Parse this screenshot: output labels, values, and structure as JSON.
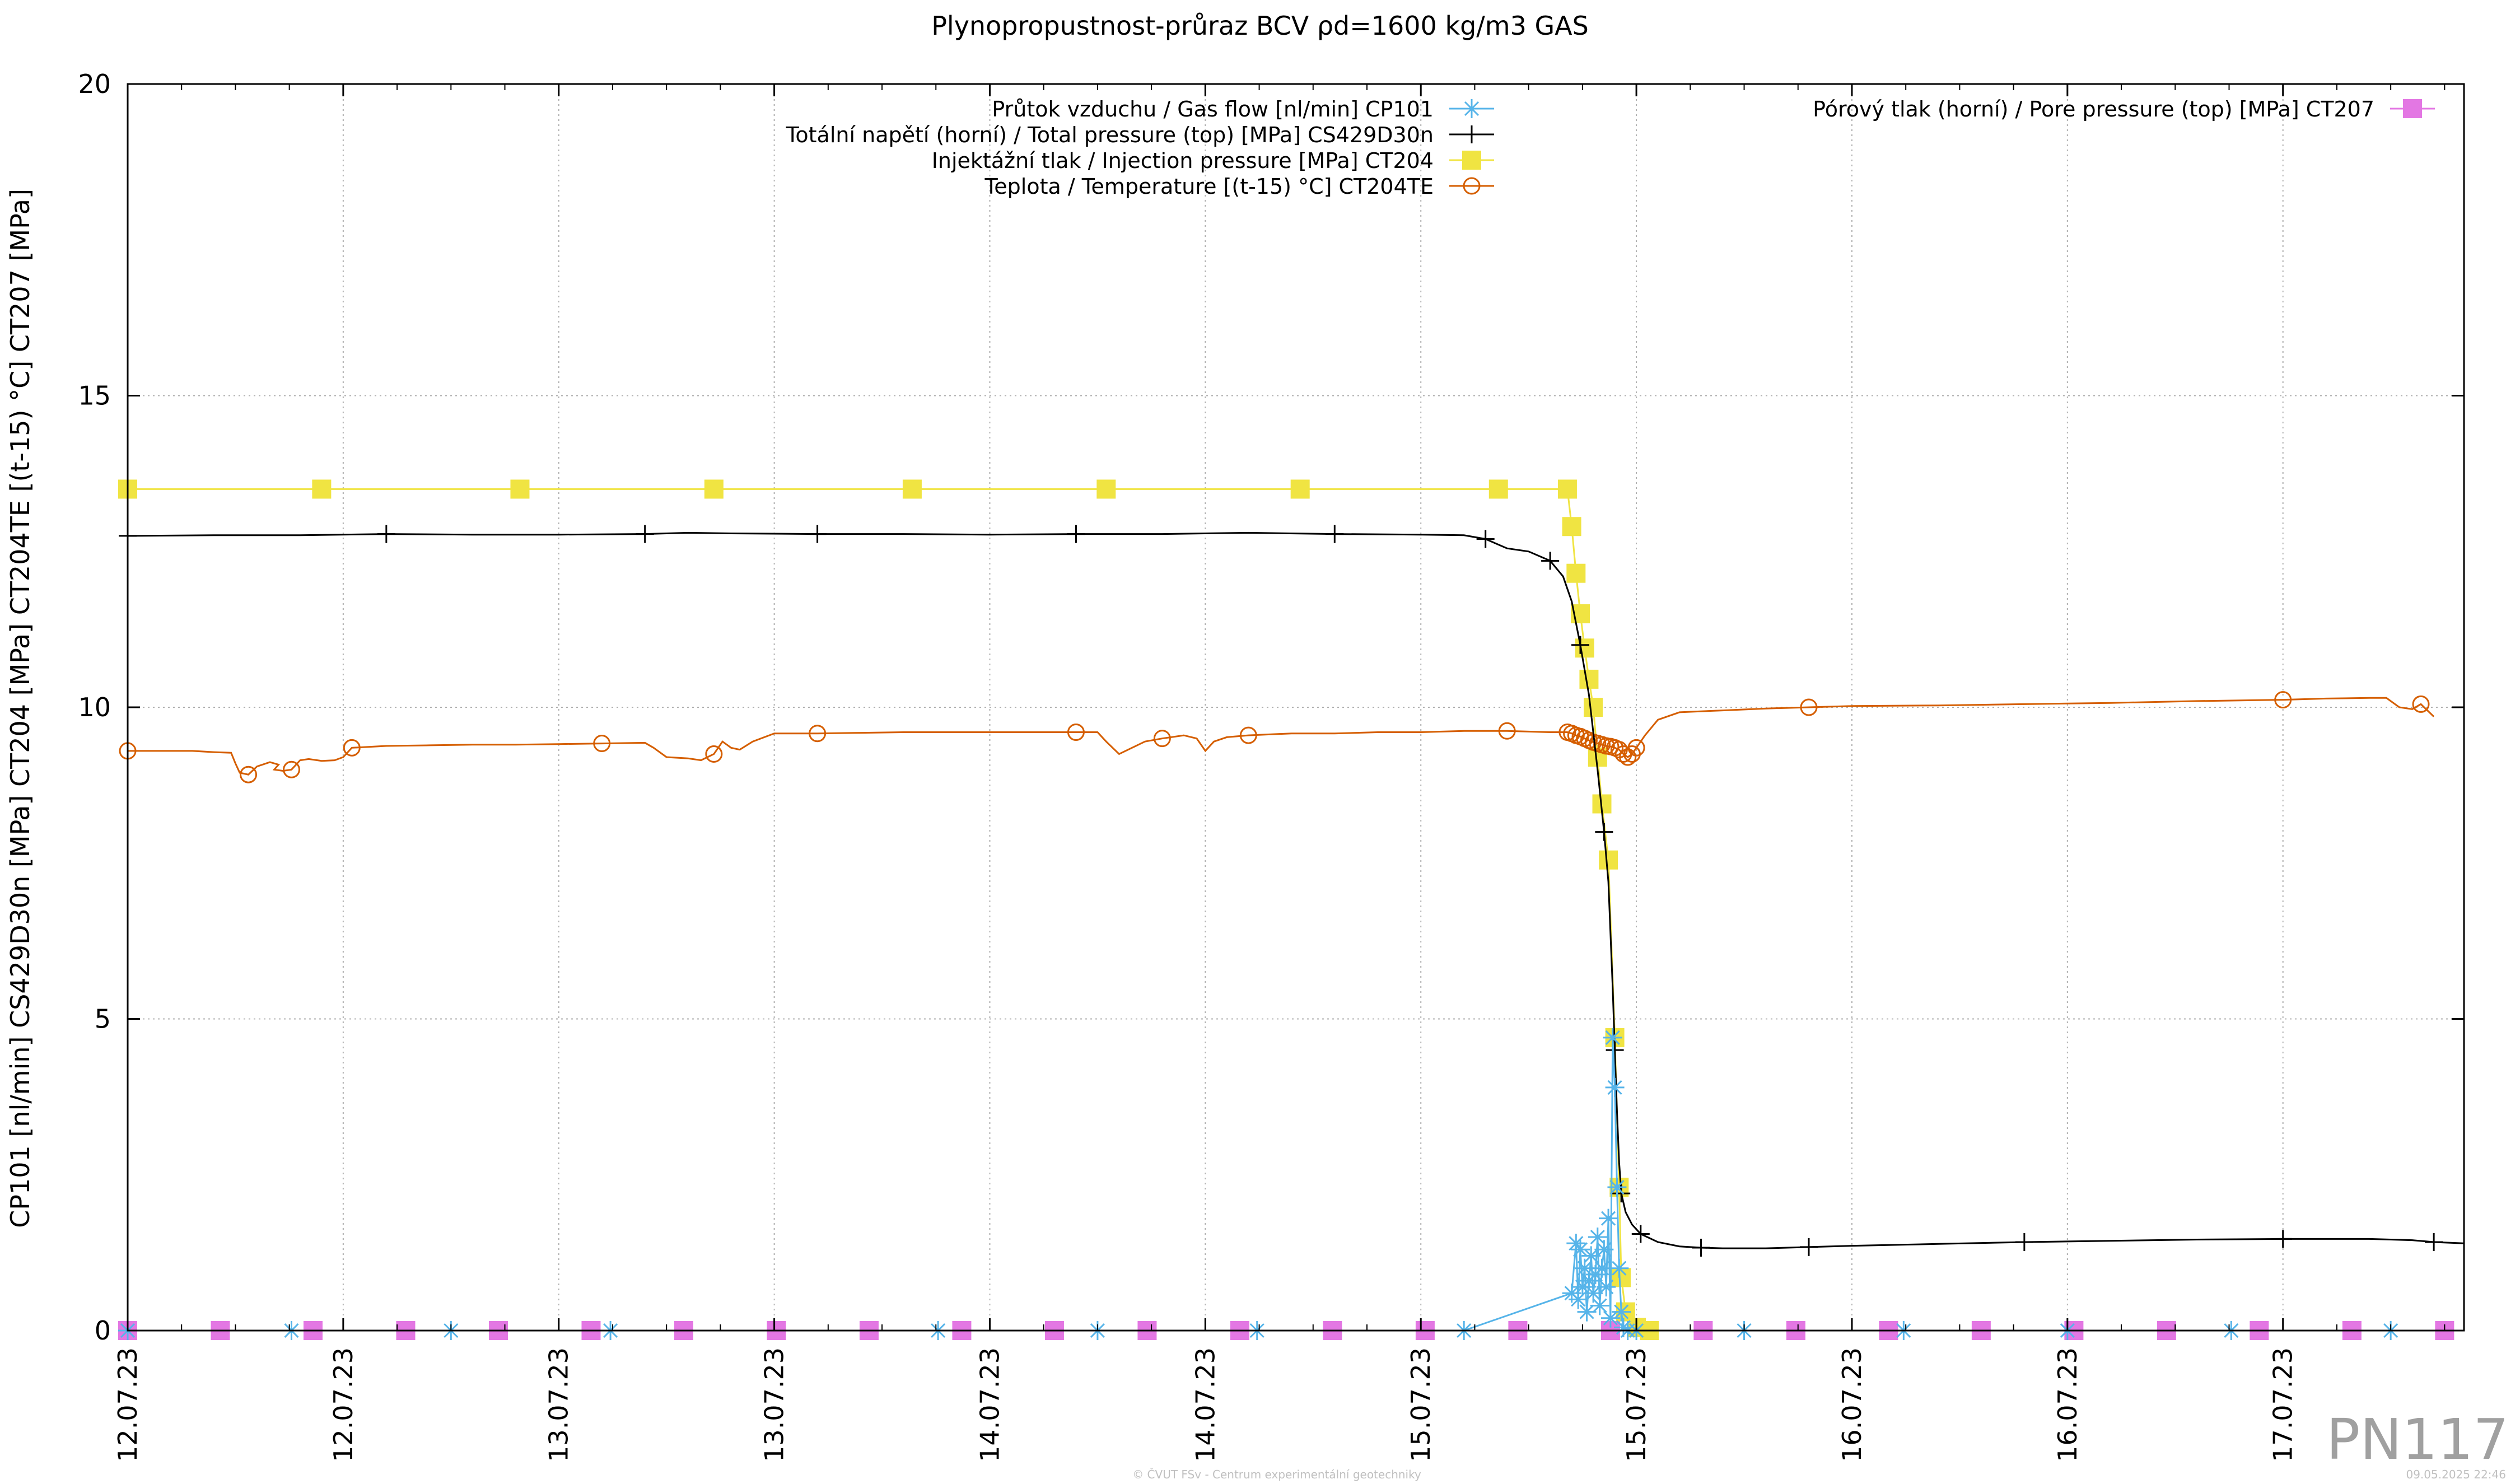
{
  "chart_data": {
    "type": "line",
    "title": "Plynopropustnost-průraz BCV ρd=1600 kg/m3 GAS",
    "ylabel": "CP101 [nl/min] CS429D30n [MPa] CT204 [MPa] CT204TE [(t-15) °C] CT207 [MPa]",
    "xlabel": "",
    "ylim": [
      0,
      20
    ],
    "xlim": [
      0,
      5.42
    ],
    "x_unit": "days from 12.07.23 00:00",
    "y_ticks": [
      0,
      5,
      10,
      15,
      20
    ],
    "y_tick_labels": [
      "0",
      "5",
      "10",
      "15",
      "20"
    ],
    "x_tick_positions": [
      0,
      0.5,
      1,
      1.5,
      2,
      2.5,
      3,
      3.5,
      4,
      4.5,
      5
    ],
    "x_tick_labels": [
      "12.07.23",
      "12.07.23",
      "13.07.23",
      "13.07.23",
      "14.07.23",
      "14.07.23",
      "15.07.23",
      "15.07.23",
      "16.07.23",
      "16.07.23",
      "17.07.23"
    ],
    "grid": true,
    "legend_placement": "top-center and top-right",
    "series": [
      {
        "name": "Průtok vzduchu / Gas flow [nl/min] CP101",
        "color": "#56b4e9",
        "marker": "asterisk",
        "points": [
          [
            0,
            0
          ],
          [
            0.38,
            0
          ],
          [
            0.75,
            0
          ],
          [
            1.12,
            0
          ],
          [
            1.88,
            0
          ],
          [
            2.25,
            0
          ],
          [
            2.62,
            0
          ],
          [
            3.1,
            0
          ],
          [
            3.35,
            0.6
          ],
          [
            3.36,
            1.4
          ],
          [
            3.365,
            0.5
          ],
          [
            3.37,
            1.3
          ],
          [
            3.375,
            0.7
          ],
          [
            3.38,
            1.0
          ],
          [
            3.385,
            0.3
          ],
          [
            3.39,
            0.8
          ],
          [
            3.395,
            1.2
          ],
          [
            3.4,
            0.6
          ],
          [
            3.405,
            0.9
          ],
          [
            3.41,
            1.5
          ],
          [
            3.415,
            0.4
          ],
          [
            3.42,
            1.0
          ],
          [
            3.425,
            1.3
          ],
          [
            3.43,
            0.7
          ],
          [
            3.435,
            1.8
          ],
          [
            3.44,
            0.2
          ],
          [
            3.445,
            4.7
          ],
          [
            3.45,
            3.9
          ],
          [
            3.455,
            2.3
          ],
          [
            3.46,
            1.0
          ],
          [
            3.465,
            0.3
          ],
          [
            3.47,
            0.05
          ],
          [
            3.48,
            0
          ],
          [
            3.5,
            0
          ],
          [
            3.75,
            0
          ],
          [
            4.12,
            0
          ],
          [
            4.5,
            0
          ],
          [
            4.88,
            0
          ],
          [
            5.25,
            0
          ]
        ]
      },
      {
        "name": "Totální napětí (horní) / Total pressure (top) [MPa] CS429D30n",
        "color": "#000000",
        "marker": "plus",
        "points": [
          [
            0,
            12.75
          ],
          [
            0.2,
            12.76
          ],
          [
            0.4,
            12.76
          ],
          [
            0.6,
            12.78
          ],
          [
            0.8,
            12.77
          ],
          [
            1.0,
            12.77
          ],
          [
            1.2,
            12.78
          ],
          [
            1.3,
            12.8
          ],
          [
            1.4,
            12.79
          ],
          [
            1.6,
            12.78
          ],
          [
            1.8,
            12.78
          ],
          [
            2.0,
            12.77
          ],
          [
            2.2,
            12.78
          ],
          [
            2.4,
            12.78
          ],
          [
            2.6,
            12.8
          ],
          [
            2.8,
            12.78
          ],
          [
            3.0,
            12.77
          ],
          [
            3.1,
            12.76
          ],
          [
            3.15,
            12.7
          ],
          [
            3.2,
            12.55
          ],
          [
            3.25,
            12.5
          ],
          [
            3.3,
            12.35
          ],
          [
            3.33,
            12.1
          ],
          [
            3.35,
            11.7
          ],
          [
            3.37,
            11.0
          ],
          [
            3.39,
            10.2
          ],
          [
            3.41,
            9.0
          ],
          [
            3.425,
            8.0
          ],
          [
            3.435,
            7.2
          ],
          [
            3.445,
            5.5
          ],
          [
            3.45,
            4.5
          ],
          [
            3.455,
            3.5
          ],
          [
            3.46,
            2.7
          ],
          [
            3.465,
            2.2
          ],
          [
            3.475,
            1.9
          ],
          [
            3.49,
            1.7
          ],
          [
            3.51,
            1.55
          ],
          [
            3.55,
            1.42
          ],
          [
            3.6,
            1.35
          ],
          [
            3.65,
            1.33
          ],
          [
            3.7,
            1.32
          ],
          [
            3.8,
            1.32
          ],
          [
            3.9,
            1.34
          ],
          [
            4.0,
            1.36
          ],
          [
            4.2,
            1.39
          ],
          [
            4.4,
            1.42
          ],
          [
            4.6,
            1.44
          ],
          [
            4.8,
            1.46
          ],
          [
            5.0,
            1.47
          ],
          [
            5.2,
            1.47
          ],
          [
            5.3,
            1.45
          ],
          [
            5.35,
            1.42
          ],
          [
            5.42,
            1.4
          ]
        ]
      },
      {
        "name": "Injektážní tlak / Injection pressure [MPa] CT204",
        "color": "#f0e442",
        "marker": "square",
        "points": [
          [
            0,
            13.5
          ],
          [
            0.45,
            13.5
          ],
          [
            0.91,
            13.5
          ],
          [
            1.36,
            13.5
          ],
          [
            1.82,
            13.5
          ],
          [
            2.27,
            13.5
          ],
          [
            2.72,
            13.5
          ],
          [
            3.18,
            13.5
          ],
          [
            3.34,
            13.5
          ],
          [
            3.35,
            12.9
          ],
          [
            3.36,
            12.15
          ],
          [
            3.37,
            11.5
          ],
          [
            3.38,
            10.95
          ],
          [
            3.39,
            10.45
          ],
          [
            3.4,
            10.0
          ],
          [
            3.41,
            9.2
          ],
          [
            3.42,
            8.45
          ],
          [
            3.435,
            7.55
          ],
          [
            3.45,
            4.7
          ],
          [
            3.46,
            2.3
          ],
          [
            3.465,
            0.85
          ],
          [
            3.475,
            0.3
          ],
          [
            3.5,
            0.05
          ],
          [
            3.53,
            0
          ]
        ]
      },
      {
        "name": "Teplota / Temperature [(t-15) °C] CT204TE",
        "color": "#d55e00",
        "marker": "circle",
        "points": [
          [
            0,
            9.3
          ],
          [
            0.15,
            9.3
          ],
          [
            0.2,
            9.28
          ],
          [
            0.24,
            9.27
          ],
          [
            0.25,
            9.1
          ],
          [
            0.26,
            8.95
          ],
          [
            0.28,
            8.92
          ],
          [
            0.3,
            9.05
          ],
          [
            0.33,
            9.12
          ],
          [
            0.35,
            9.08
          ],
          [
            0.34,
            9.0
          ],
          [
            0.36,
            8.98
          ],
          [
            0.38,
            9.0
          ],
          [
            0.4,
            9.15
          ],
          [
            0.42,
            9.17
          ],
          [
            0.45,
            9.14
          ],
          [
            0.48,
            9.15
          ],
          [
            0.5,
            9.2
          ],
          [
            0.52,
            9.35
          ],
          [
            0.6,
            9.38
          ],
          [
            0.7,
            9.39
          ],
          [
            0.8,
            9.4
          ],
          [
            0.9,
            9.4
          ],
          [
            1.0,
            9.41
          ],
          [
            1.1,
            9.42
          ],
          [
            1.2,
            9.43
          ],
          [
            1.22,
            9.35
          ],
          [
            1.25,
            9.2
          ],
          [
            1.3,
            9.18
          ],
          [
            1.33,
            9.15
          ],
          [
            1.36,
            9.25
          ],
          [
            1.38,
            9.45
          ],
          [
            1.4,
            9.35
          ],
          [
            1.42,
            9.32
          ],
          [
            1.45,
            9.45
          ],
          [
            1.5,
            9.58
          ],
          [
            1.6,
            9.58
          ],
          [
            1.7,
            9.59
          ],
          [
            1.8,
            9.6
          ],
          [
            1.9,
            9.6
          ],
          [
            2.0,
            9.6
          ],
          [
            2.1,
            9.6
          ],
          [
            2.2,
            9.6
          ],
          [
            2.25,
            9.6
          ],
          [
            2.27,
            9.45
          ],
          [
            2.3,
            9.25
          ],
          [
            2.33,
            9.35
          ],
          [
            2.36,
            9.45
          ],
          [
            2.4,
            9.5
          ],
          [
            2.45,
            9.55
          ],
          [
            2.48,
            9.5
          ],
          [
            2.5,
            9.3
          ],
          [
            2.52,
            9.45
          ],
          [
            2.55,
            9.52
          ],
          [
            2.6,
            9.55
          ],
          [
            2.7,
            9.58
          ],
          [
            2.8,
            9.58
          ],
          [
            2.9,
            9.6
          ],
          [
            3.0,
            9.6
          ],
          [
            3.1,
            9.62
          ],
          [
            3.2,
            9.62
          ],
          [
            3.3,
            9.6
          ],
          [
            3.34,
            9.6
          ],
          [
            3.35,
            9.58
          ],
          [
            3.36,
            9.55
          ],
          [
            3.37,
            9.53
          ],
          [
            3.38,
            9.5
          ],
          [
            3.39,
            9.47
          ],
          [
            3.4,
            9.44
          ],
          [
            3.41,
            9.42
          ],
          [
            3.42,
            9.4
          ],
          [
            3.43,
            9.38
          ],
          [
            3.44,
            9.37
          ],
          [
            3.45,
            9.35
          ],
          [
            3.46,
            9.32
          ],
          [
            3.47,
            9.25
          ],
          [
            3.48,
            9.2
          ],
          [
            3.49,
            9.25
          ],
          [
            3.5,
            9.35
          ],
          [
            3.52,
            9.55
          ],
          [
            3.55,
            9.8
          ],
          [
            3.6,
            9.92
          ],
          [
            3.7,
            9.95
          ],
          [
            3.8,
            9.98
          ],
          [
            3.9,
            10.0
          ],
          [
            4.0,
            10.02
          ],
          [
            4.2,
            10.03
          ],
          [
            4.4,
            10.05
          ],
          [
            4.6,
            10.07
          ],
          [
            4.8,
            10.1
          ],
          [
            5.0,
            10.12
          ],
          [
            5.1,
            10.14
          ],
          [
            5.2,
            10.15
          ],
          [
            5.24,
            10.15
          ],
          [
            5.27,
            10.0
          ],
          [
            5.3,
            9.97
          ],
          [
            5.32,
            10.05
          ],
          [
            5.35,
            9.85
          ]
        ]
      },
      {
        "name": "Pórový tlak (horní) / Pore pressure (top) [MPa] CT207",
        "color": "#e377e3",
        "marker": "square",
        "points": [
          [
            0,
            0
          ],
          [
            0.215,
            0
          ],
          [
            0.43,
            0
          ],
          [
            0.645,
            0
          ],
          [
            0.86,
            0
          ],
          [
            1.075,
            0
          ],
          [
            1.29,
            0
          ],
          [
            1.505,
            0
          ],
          [
            1.72,
            0
          ],
          [
            1.935,
            0
          ],
          [
            2.15,
            0
          ],
          [
            2.365,
            0
          ],
          [
            2.58,
            0
          ],
          [
            2.795,
            0
          ],
          [
            3.01,
            0
          ],
          [
            3.225,
            0
          ],
          [
            3.44,
            0
          ],
          [
            3.655,
            0
          ],
          [
            3.87,
            0
          ],
          [
            4.085,
            0
          ],
          [
            4.3,
            0
          ],
          [
            4.515,
            0
          ],
          [
            4.73,
            0
          ],
          [
            4.945,
            0
          ],
          [
            5.16,
            0
          ],
          [
            5.375,
            0
          ]
        ]
      }
    ]
  },
  "watermark": "PN117",
  "footer_credit": "© ČVUT FSv - Centrum experimentální geotechniky",
  "footer_date": "09.05.2025 22:46"
}
